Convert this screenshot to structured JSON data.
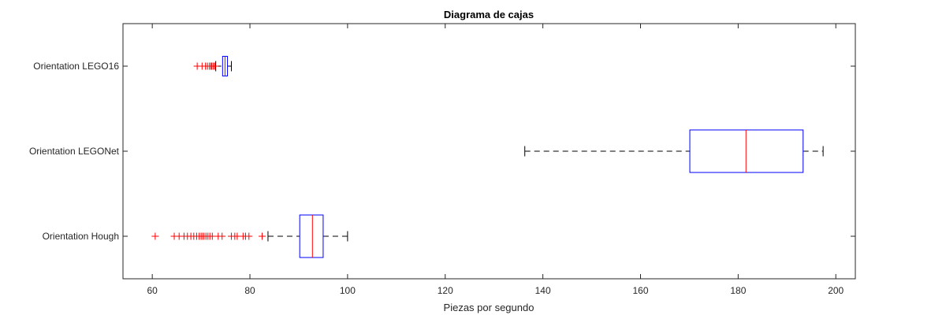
{
  "chart_data": {
    "type": "boxplot",
    "orientation": "horizontal",
    "title": "Diagrama de cajas",
    "xlabel": "Piezas por segundo",
    "ylabel": "",
    "xlim": [
      54,
      204
    ],
    "xticks": [
      60,
      80,
      100,
      120,
      140,
      160,
      180,
      200
    ],
    "grid": false,
    "colors": {
      "box": "#0000ff",
      "median": "#ff0000",
      "whisker": "#000000",
      "outlier": "#ff0000",
      "axis": "#262626"
    },
    "categories": [
      "Orientation LEGO16",
      "Orientation LEGONet",
      "Orientation Hough"
    ],
    "series": [
      {
        "label": "Orientation LEGO16",
        "whisker_low": 73.0,
        "q1": 74.4,
        "median": 74.9,
        "q3": 75.4,
        "whisker_high": 76.2,
        "outliers": [
          69.2,
          70.2,
          70.9,
          71.3,
          71.7,
          72.0,
          72.2,
          72.5,
          72.8
        ]
      },
      {
        "label": "Orientation LEGONet",
        "whisker_low": 136.3,
        "q1": 170.1,
        "median": 181.6,
        "q3": 193.3,
        "whisker_high": 197.4,
        "outliers": []
      },
      {
        "label": "Orientation Hough",
        "whisker_low": 83.7,
        "q1": 90.2,
        "median": 92.8,
        "q3": 95.0,
        "whisker_high": 100.0,
        "outliers": [
          60.6,
          64.5,
          65.5,
          66.5,
          67.2,
          67.9,
          68.5,
          69.1,
          69.6,
          70.0,
          70.3,
          70.6,
          71.0,
          71.4,
          71.8,
          72.3,
          73.5,
          74.3,
          76.2,
          76.9,
          77.4,
          78.6,
          79.1,
          79.8,
          82.5
        ]
      }
    ]
  }
}
